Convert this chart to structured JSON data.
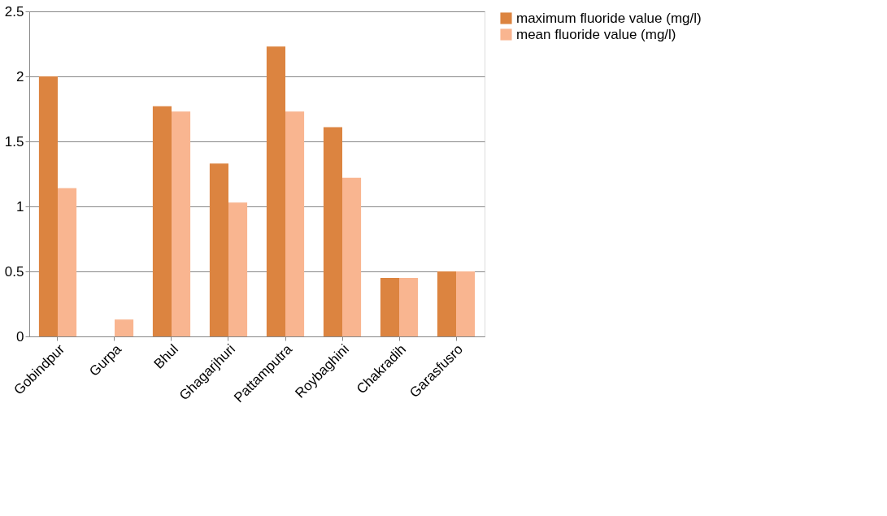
{
  "chart_data": {
    "type": "bar",
    "categories": [
      "Gobindpur",
      "Gurpa",
      "Bhul",
      "Ghagarjhuri",
      "Pattamputra",
      "Roybaghini",
      "Chakradih",
      "Garasfusro"
    ],
    "series": [
      {
        "name": "maximum fluoride value (mg/l)",
        "color": "#dc8440",
        "values": [
          2.0,
          0,
          1.77,
          1.33,
          2.23,
          1.61,
          0.45,
          0.5
        ]
      },
      {
        "name": "mean fluoride value (mg/l)",
        "color": "#f9b590",
        "values": [
          1.14,
          0.13,
          1.73,
          1.03,
          1.73,
          1.22,
          0.45,
          0.5
        ]
      }
    ],
    "ylim": [
      0,
      2.5
    ],
    "yticks": [
      0,
      0.5,
      1,
      1.5,
      2,
      2.5
    ],
    "grid": "y",
    "legend": "right"
  }
}
